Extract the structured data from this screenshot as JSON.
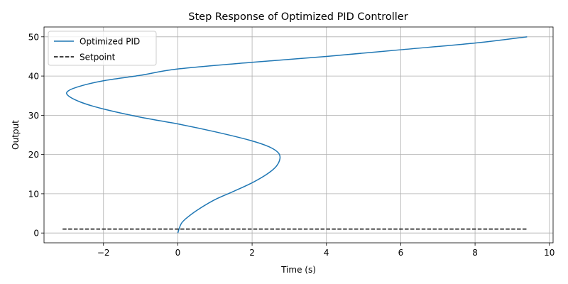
{
  "chart_data": {
    "type": "line",
    "title": "Step Response of Optimized PID Controller",
    "xlabel": "Time (s)",
    "ylabel": "Output",
    "xlim": [
      -3.6,
      10.1
    ],
    "ylim": [
      -2.5,
      52.5
    ],
    "xticks": [
      -2,
      0,
      2,
      4,
      6,
      8,
      10
    ],
    "xtick_labels": [
      "−2",
      "0",
      "2",
      "4",
      "6",
      "8",
      "10"
    ],
    "yticks": [
      0,
      10,
      20,
      30,
      40,
      50
    ],
    "ytick_labels": [
      "0",
      "10",
      "20",
      "30",
      "40",
      "50"
    ],
    "grid": true,
    "legend_position": "upper-left",
    "series": [
      {
        "name": "Optimized PID",
        "color": "#1f77b4",
        "style": "solid",
        "points": [
          [
            0.0,
            0.0
          ],
          [
            0.1,
            2.5
          ],
          [
            0.3,
            4.3
          ],
          [
            0.6,
            6.3
          ],
          [
            1.0,
            8.5
          ],
          [
            1.5,
            10.6
          ],
          [
            2.0,
            12.8
          ],
          [
            2.4,
            15.0
          ],
          [
            2.65,
            17.0
          ],
          [
            2.75,
            19.0
          ],
          [
            2.7,
            20.5
          ],
          [
            2.45,
            22.0
          ],
          [
            1.95,
            23.6
          ],
          [
            1.0,
            25.8
          ],
          [
            0.0,
            27.8
          ],
          [
            -1.0,
            29.5
          ],
          [
            -2.0,
            31.6
          ],
          [
            -2.6,
            33.3
          ],
          [
            -2.95,
            35.0
          ],
          [
            -2.95,
            36.2
          ],
          [
            -2.6,
            37.5
          ],
          [
            -2.0,
            38.8
          ],
          [
            -1.0,
            40.2
          ],
          [
            0.0,
            41.8
          ],
          [
            2.0,
            43.5
          ],
          [
            4.0,
            45.0
          ],
          [
            6.0,
            46.7
          ],
          [
            8.0,
            48.4
          ],
          [
            9.4,
            50.0
          ]
        ]
      },
      {
        "name": "Setpoint",
        "color": "#000000",
        "style": "dashed",
        "points": [
          [
            -3.1,
            1.0
          ],
          [
            9.4,
            1.0
          ]
        ]
      }
    ]
  }
}
